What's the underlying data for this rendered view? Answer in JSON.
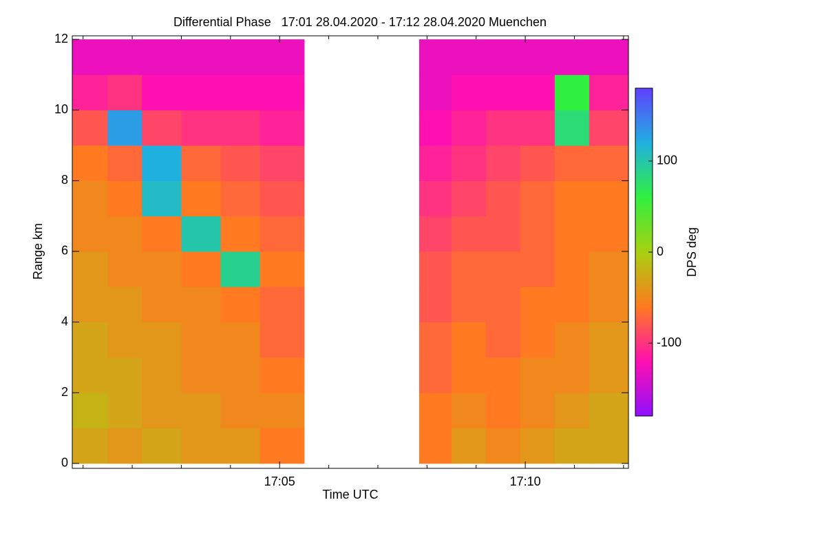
{
  "chart_data": {
    "type": "heatmap",
    "title": "Differential Phase   17:01 28.04.2020 - 17:12 28.04.2020 Muenchen",
    "x_label": "Time UTC",
    "y_label": "Range km",
    "colorbar_label": "DPS deg",
    "xlim": [
      0.78,
      12.1
    ],
    "xticks": [
      {
        "value": 5,
        "label": "17:05"
      },
      {
        "value": 10,
        "label": "17:10"
      }
    ],
    "xminor_ticks": [
      1,
      2,
      3,
      4,
      6,
      7,
      8,
      9,
      11,
      12
    ],
    "ylim": [
      -0.14,
      12.1
    ],
    "yticks": [
      0,
      2,
      4,
      6,
      8,
      10,
      12
    ],
    "x_bins": [
      0.78,
      1.5,
      2.2,
      3.0,
      3.8,
      4.6,
      5.5,
      7.84,
      8.5,
      9.2,
      9.9,
      10.6,
      11.3,
      12.1
    ],
    "y_bins": [
      0,
      1,
      2,
      3,
      4,
      5,
      6,
      7,
      8,
      9,
      10,
      11,
      12
    ],
    "values": [
      [
        -30,
        -40,
        -30,
        -40,
        -40,
        -60,
        null,
        -60,
        -40,
        -50,
        -40,
        -30,
        -30
      ],
      [
        -20,
        -30,
        -40,
        -40,
        -50,
        -50,
        null,
        -60,
        -50,
        -60,
        -50,
        -40,
        -30
      ],
      [
        -30,
        -30,
        -40,
        -50,
        -50,
        -60,
        null,
        -70,
        -60,
        -60,
        -50,
        -50,
        -40
      ],
      [
        -30,
        -40,
        -40,
        -50,
        -50,
        -70,
        null,
        -70,
        -60,
        -70,
        -60,
        -50,
        -40
      ],
      [
        -40,
        -40,
        -50,
        -50,
        -60,
        -70,
        null,
        -80,
        -70,
        -70,
        -60,
        -60,
        -50
      ],
      [
        -40,
        -50,
        -50,
        -60,
        90,
        -60,
        null,
        -80,
        -70,
        -70,
        -70,
        -60,
        -50
      ],
      [
        -50,
        -50,
        -60,
        100,
        -60,
        -70,
        null,
        -90,
        -80,
        -80,
        -70,
        -60,
        -60
      ],
      [
        -50,
        -60,
        110,
        -60,
        -70,
        -80,
        null,
        -100,
        -90,
        -80,
        -70,
        -60,
        -60
      ],
      [
        -60,
        -70,
        120,
        -70,
        -80,
        -90,
        null,
        -110,
        -100,
        -90,
        -80,
        -70,
        -70
      ],
      [
        -80,
        130,
        -90,
        -100,
        -100,
        -110,
        null,
        -120,
        -110,
        -100,
        -100,
        80,
        -90
      ],
      [
        -110,
        -100,
        -120,
        -120,
        -120,
        -120,
        null,
        -130,
        -120,
        -120,
        -120,
        60,
        -110
      ],
      [
        -130,
        -130,
        -130,
        -130,
        -130,
        -130,
        null,
        -130,
        -130,
        -130,
        -130,
        -130,
        -130
      ]
    ],
    "clim": [
      -180,
      180
    ],
    "colorbar_ticks": [
      -100,
      0,
      100
    ],
    "colorscale": [
      "#9010ff",
      "#ff10b0",
      "#ff7a20",
      "#a8d010",
      "#30f040",
      "#20b0e0",
      "#6040ff"
    ]
  }
}
